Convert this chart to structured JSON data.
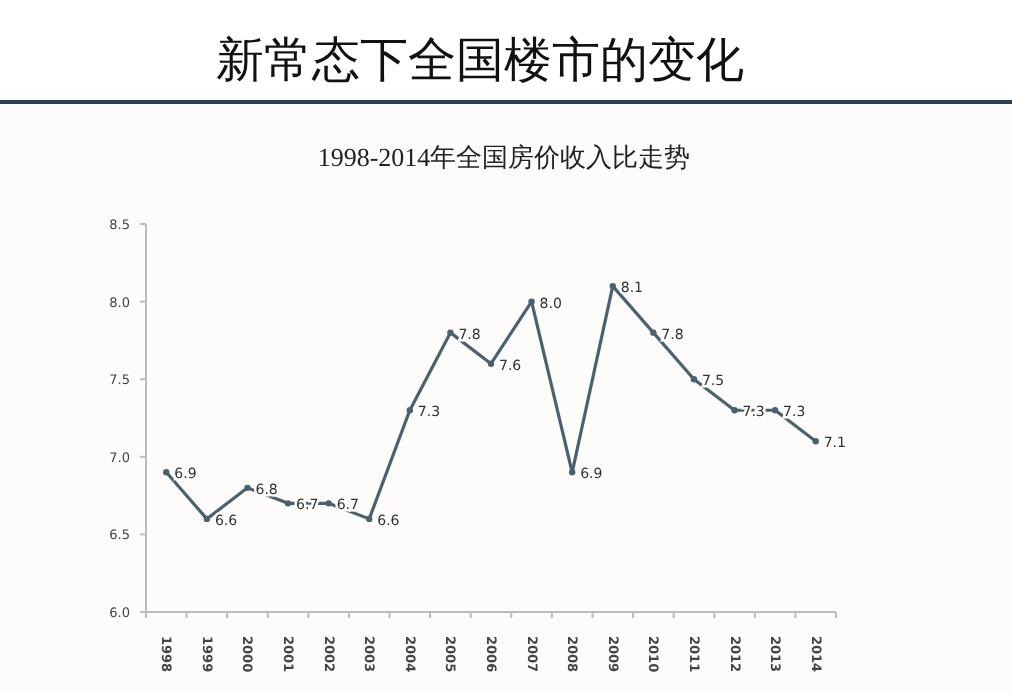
{
  "chart_data": {
    "type": "line",
    "title": "新常态下全国楼市的变化",
    "subtitle": "1998-2014年全国房价收入比走势",
    "categories": [
      "1998",
      "1999",
      "2000",
      "2001",
      "2002",
      "2003",
      "2004",
      "2005",
      "2006",
      "2007",
      "2008",
      "2009",
      "2010",
      "2011",
      "2012",
      "2013",
      "2014"
    ],
    "series": [
      {
        "color": "#4a6270",
        "values": [
          6.9,
          6.6,
          6.8,
          6.7,
          6.7,
          6.6,
          7.3,
          7.8,
          7.6,
          8.0,
          6.9,
          8.1,
          7.8,
          7.5,
          7.3,
          7.3,
          7.1
        ],
        "value_labels": [
          "6.9",
          "6.6",
          "6.8",
          "6.7",
          "6.7",
          "6.6",
          "7.3",
          "7.8",
          "7.6",
          "8.0",
          "6.9",
          "8.1",
          "7.8",
          "7.5",
          "7.3",
          "7.3",
          "7.1"
        ]
      }
    ],
    "ylim": [
      6.0,
      8.5
    ],
    "yticks": [
      {
        "value": 6.0,
        "label": "6.0"
      },
      {
        "value": 6.5,
        "label": "6.5"
      },
      {
        "value": 7.0,
        "label": "7.0"
      },
      {
        "value": 7.5,
        "label": "7.5"
      },
      {
        "value": 8.0,
        "label": "8.0"
      },
      {
        "value": 8.5,
        "label": "8.5"
      }
    ],
    "grid": false,
    "marker": "circle",
    "line_style": "solid"
  }
}
